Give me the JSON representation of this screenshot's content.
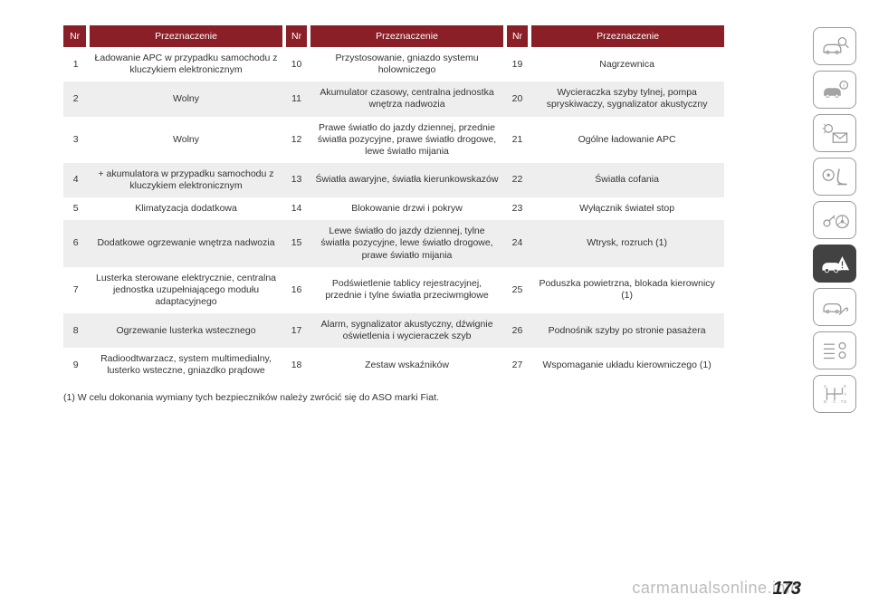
{
  "header": {
    "nr": "Nr",
    "desc": "Przeznaczenie"
  },
  "rows": [
    {
      "c1n": "1",
      "c1d": "Ładowanie APC w przypadku samochodu z kluczykiem elektronicznym",
      "c2n": "10",
      "c2d": "Przystosowanie, gniazdo systemu holowniczego",
      "c3n": "19",
      "c3d": "Nagrzewnica"
    },
    {
      "c1n": "2",
      "c1d": "Wolny",
      "c2n": "11",
      "c2d": "Akumulator czasowy, centralna jednostka wnętrza nadwozia",
      "c3n": "20",
      "c3d": "Wycieraczka szyby tylnej, pompa spryskiwaczy, sygnalizator akustyczny"
    },
    {
      "c1n": "3",
      "c1d": "Wolny",
      "c2n": "12",
      "c2d": "Prawe światło do jazdy dziennej, przednie światła pozycyjne, prawe światło drogowe, lewe światło mijania",
      "c3n": "21",
      "c3d": "Ogólne ładowanie APC"
    },
    {
      "c1n": "4",
      "c1d": "+ akumulatora w przypadku samochodu z kluczykiem elektronicznym",
      "c2n": "13",
      "c2d": "Światła awaryjne, światła kierunkowskazów",
      "c3n": "22",
      "c3d": "Światła cofania"
    },
    {
      "c1n": "5",
      "c1d": "Klimatyzacja dodatkowa",
      "c2n": "14",
      "c2d": "Blokowanie drzwi i pokryw",
      "c3n": "23",
      "c3d": "Wyłącznik świateł stop"
    },
    {
      "c1n": "6",
      "c1d": "Dodatkowe ogrzewanie wnętrza nadwozia",
      "c2n": "15",
      "c2d": "Lewe światło do jazdy dziennej, tylne światła pozycyjne, lewe światło drogowe, prawe światło mijania",
      "c3n": "24",
      "c3d": "Wtrysk, rozruch (1)"
    },
    {
      "c1n": "7",
      "c1d": "Lusterka sterowane elektrycznie, centralna jednostka uzupełniającego modułu adaptacyjnego",
      "c2n": "16",
      "c2d": "Podświetlenie tablicy rejestracyjnej, przednie i tylne światła przeciwmgłowe",
      "c3n": "25",
      "c3d": "Poduszka powietrzna, blokada kierownicy (1)"
    },
    {
      "c1n": "8",
      "c1d": "Ogrzewanie lusterka wstecznego",
      "c2n": "17",
      "c2d": "Alarm, sygnalizator akustyczny, dźwignie oświetlenia i wycieraczek szyb",
      "c3n": "26",
      "c3d": "Podnośnik szyby po stronie pasażera"
    },
    {
      "c1n": "9",
      "c1d": "Radioodtwarzacz, system multimedialny, lusterko wsteczne, gniazdko prądowe",
      "c2n": "18",
      "c2d": "Zestaw wskaźników",
      "c3n": "27",
      "c3d": "Wspomaganie układu kierowniczego (1)"
    }
  ],
  "footnote": "(1) W celu dokonania wymiany tych bezpieczników należy zwrócić się do ASO marki Fiat.",
  "page_number": "173",
  "watermark": "carmanualsonline.info",
  "colors": {
    "header_bg": "#8a1f28",
    "header_fg": "#ffffff",
    "row_even": "#eeeeee",
    "row_odd": "#ffffff",
    "border_gray": "#9a9a9a",
    "active_bg": "#424242"
  },
  "sidebar_icons": [
    "car-search-icon",
    "car-info-icon",
    "light-mail-icon",
    "airbag-seat-icon",
    "key-wheel-icon",
    "car-warning-icon",
    "car-wrench-icon",
    "list-gears-icon",
    "transmission-icon"
  ],
  "sidebar_active_index": 5
}
